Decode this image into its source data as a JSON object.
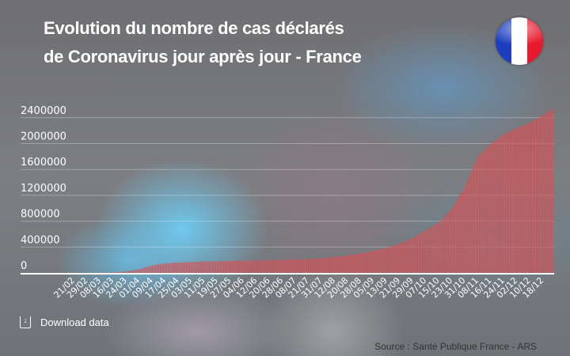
{
  "title_line1": "Evolution du nombre de cas déclarés",
  "title_line2": "de Coronavirus jour après jour - France",
  "download_label": "Download data",
  "source": "Source : Santé Publique France - ARS",
  "colors": {
    "bar": "#e04848",
    "flag_blue": "#1d3fbf",
    "flag_white": "#ffffff",
    "flag_red": "#e8192c"
  },
  "chart_data": {
    "type": "bar",
    "title": "Evolution du nombre de cas déclarés de Coronavirus jour après jour - France",
    "xlabel": "",
    "ylabel": "",
    "ylim": [
      0,
      2600000
    ],
    "yticks": [
      "0",
      "400000",
      "800000",
      "1200000",
      "1600000",
      "2000000",
      "2400000"
    ],
    "ytick_values": [
      0,
      400000,
      800000,
      1200000,
      1600000,
      2000000,
      2400000
    ],
    "grid": true,
    "categories": [
      "21/02",
      "29/02",
      "08/03",
      "16/03",
      "24/03",
      "01/04",
      "09/04",
      "17/04",
      "25/04",
      "03/05",
      "11/05",
      "19/05",
      "27/05",
      "04/06",
      "12/06",
      "20/06",
      "28/06",
      "08/07",
      "21/07",
      "31/07",
      "12/08",
      "20/08",
      "28/08",
      "05/09",
      "13/09",
      "21/09",
      "29/09",
      "07/10",
      "15/10",
      "23/10",
      "31/10",
      "08/11",
      "16/11",
      "24/11",
      "02/12",
      "10/12",
      "18/12"
    ],
    "values": [
      12,
      100,
      1100,
      6600,
      22000,
      57000,
      118000,
      147000,
      160000,
      168000,
      177000,
      180000,
      183000,
      189000,
      193000,
      197000,
      200000,
      207000,
      215000,
      225000,
      245000,
      270000,
      300000,
      340000,
      390000,
      450000,
      540000,
      660000,
      780000,
      1000000,
      1330000,
      1790000,
      1990000,
      2150000,
      2240000,
      2320000,
      2440000
    ],
    "last_value": 2550000
  }
}
